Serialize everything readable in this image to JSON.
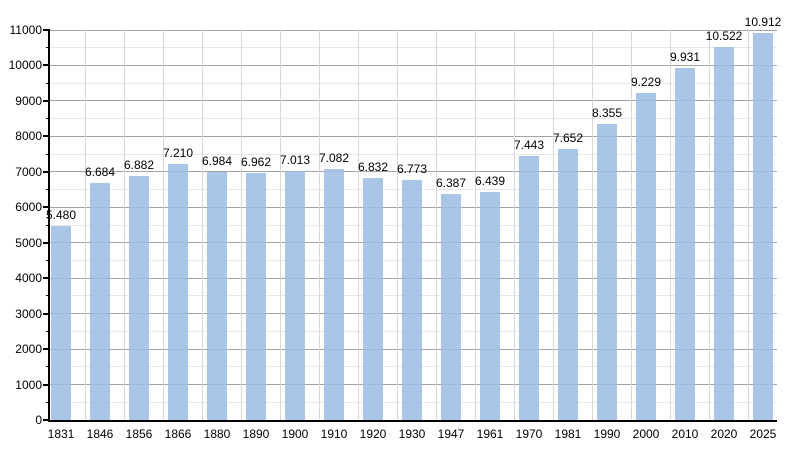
{
  "chart_data": {
    "type": "bar",
    "title": "",
    "xlabel": "",
    "ylabel": "",
    "categories": [
      "1831",
      "1846",
      "1856",
      "1866",
      "1880",
      "1890",
      "1900",
      "1910",
      "1920",
      "1930",
      "1947",
      "1961",
      "1970",
      "1981",
      "1990",
      "2000",
      "2010",
      "2020",
      "2025"
    ],
    "values": [
      5480,
      6684,
      6882,
      7210,
      6984,
      6962,
      7013,
      7082,
      6832,
      6773,
      6387,
      6439,
      7443,
      7652,
      8355,
      9229,
      9931,
      10522,
      10912
    ],
    "value_labels": [
      "5.480",
      "6.684",
      "6.882",
      "7.210",
      "6.984",
      "6.962",
      "7.013",
      "7.082",
      "6.832",
      "6.773",
      "6.387",
      "6.439",
      "7.443",
      "7.652",
      "8.355",
      "9.229",
      "9.931",
      "10.522",
      "10.912"
    ],
    "ylim": [
      0,
      11000
    ],
    "y_major_step": 1000,
    "y_minor_step": 500,
    "y_tick_labels": [
      "0",
      "1000",
      "2000",
      "3000",
      "4000",
      "5000",
      "6000",
      "7000",
      "8000",
      "9000",
      "10000",
      "11000"
    ],
    "legend": "none",
    "grid": "horizontal major + minor, light vertical separators between categories",
    "colors": {
      "bar_fill": "rgba(158,190,226,0.88)",
      "major_grid": "#a3a3a3",
      "minor_grid": "#e8e8e8",
      "vertical_grid": "#d7d7d7",
      "axis": "#000000",
      "tick": "#000000",
      "text": "#000000"
    }
  }
}
